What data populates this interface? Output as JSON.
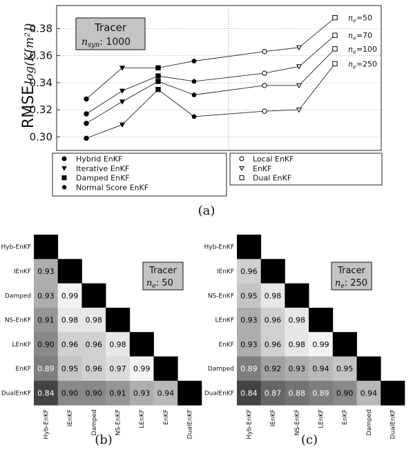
{
  "chart_data": [
    {
      "type": "line",
      "panel_label": "(a)",
      "ylabel": "RMSE",
      "ylabel_unit": "log(K[m²])",
      "ylim": [
        0.29,
        0.397
      ],
      "yticks": [
        "0.30",
        "0.32",
        "0.34",
        "0.36",
        "0.38"
      ],
      "grid": true,
      "info_box": {
        "title": "Tracer",
        "subtitle_label": "n",
        "subtitle_sub": "syn",
        "subtitle_value": ": 1000"
      },
      "legend_left": [
        {
          "marker": "filled-circle",
          "label": "Hybrid EnKF"
        },
        {
          "marker": "filled-triangle-down",
          "label": "Iterative EnKF"
        },
        {
          "marker": "filled-square",
          "label": "Damped EnKF"
        },
        {
          "marker": "filled-pentagon",
          "label": "Normal Score EnKF"
        }
      ],
      "legend_right": [
        {
          "marker": "open-circle",
          "label": "Local EnKF"
        },
        {
          "marker": "open-triangle-down",
          "label": "EnKF"
        },
        {
          "marker": "open-square",
          "label": "Dual EnKF"
        }
      ],
      "markers": [
        "filled-circle",
        "filled-triangle-down",
        "filled-square",
        "filled-pentagon",
        "open-circle",
        "open-triangle-down",
        "open-square"
      ],
      "series": [
        {
          "name": "ne=50",
          "ne_value": "=50",
          "values": [
            0.328,
            0.351,
            0.351,
            0.356,
            0.363,
            0.366,
            0.388
          ]
        },
        {
          "name": "ne=70",
          "ne_value": "=70",
          "values": [
            0.317,
            0.334,
            0.345,
            0.341,
            0.347,
            0.352,
            0.375
          ]
        },
        {
          "name": "ne=100",
          "ne_value": "=100",
          "values": [
            0.31,
            0.326,
            0.341,
            0.331,
            0.338,
            0.338,
            0.365
          ]
        },
        {
          "name": "ne=250",
          "ne_value": "=250",
          "values": [
            0.299,
            0.309,
            0.335,
            0.315,
            0.319,
            0.32,
            0.354
          ]
        }
      ]
    },
    {
      "type": "heatmap",
      "panel_label": "(b)",
      "info_box": {
        "title": "Tracer",
        "subtitle_label": "n",
        "subtitle_sub": "e",
        "subtitle_value": ":   50"
      },
      "labels": [
        "Hyb-EnKF",
        "IEnKF",
        "Damped",
        "NS-EnKF",
        "LEnKF",
        "EnKF",
        "DualEnKF"
      ],
      "matrix": [
        [],
        [
          "0.93"
        ],
        [
          "0.93",
          "0.99"
        ],
        [
          "0.91",
          "0.98",
          "0.98"
        ],
        [
          "0.90",
          "0.96",
          "0.96",
          "0.98"
        ],
        [
          "0.89",
          "0.95",
          "0.96",
          "0.97",
          "0.99"
        ],
        [
          "0.84",
          "0.90",
          "0.90",
          "0.91",
          "0.93",
          "0.94"
        ]
      ]
    },
    {
      "type": "heatmap",
      "panel_label": "(c)",
      "info_box": {
        "title": "Tracer",
        "subtitle_label": "n",
        "subtitle_sub": "e",
        "subtitle_value": ":  250"
      },
      "labels": [
        "Hyb-EnKF",
        "IEnKF",
        "NS-EnKF",
        "LEnKF",
        "EnKF",
        "Damped",
        "DualEnKF"
      ],
      "matrix": [
        [],
        [
          "0.96"
        ],
        [
          "0.95",
          "0.98"
        ],
        [
          "0.93",
          "0.96",
          "0.98"
        ],
        [
          "0.93",
          "0.96",
          "0.98",
          "0.99"
        ],
        [
          "0.89",
          "0.92",
          "0.93",
          "0.94",
          "0.95"
        ],
        [
          "0.84",
          "0.87",
          "0.88",
          "0.89",
          "0.90",
          "0.94"
        ]
      ]
    }
  ]
}
